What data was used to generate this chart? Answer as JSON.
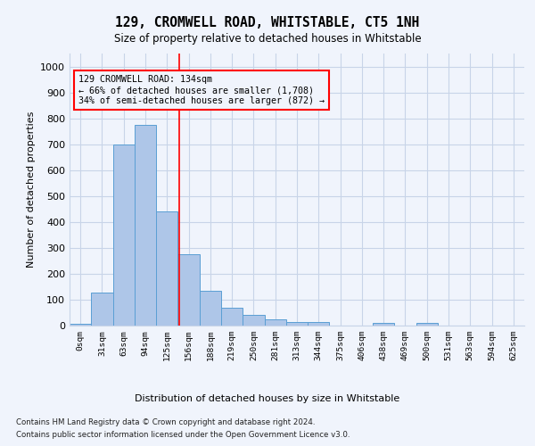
{
  "title": "129, CROMWELL ROAD, WHITSTABLE, CT5 1NH",
  "subtitle": "Size of property relative to detached houses in Whitstable",
  "xlabel": "Distribution of detached houses by size in Whitstable",
  "ylabel": "Number of detached properties",
  "footnote1": "Contains HM Land Registry data © Crown copyright and database right 2024.",
  "footnote2": "Contains public sector information licensed under the Open Government Licence v3.0.",
  "bar_labels": [
    "0sqm",
    "31sqm",
    "63sqm",
    "94sqm",
    "125sqm",
    "156sqm",
    "188sqm",
    "219sqm",
    "250sqm",
    "281sqm",
    "313sqm",
    "344sqm",
    "375sqm",
    "406sqm",
    "438sqm",
    "469sqm",
    "500sqm",
    "531sqm",
    "563sqm",
    "594sqm",
    "625sqm"
  ],
  "bar_values": [
    7,
    127,
    700,
    775,
    440,
    275,
    133,
    70,
    40,
    25,
    13,
    13,
    0,
    0,
    10,
    0,
    10,
    0,
    0,
    0,
    0
  ],
  "bar_color": "#aec6e8",
  "bar_edge_color": "#5a9fd4",
  "grid_color": "#c8d4e8",
  "background_color": "#f0f4fc",
  "vline_x": 4.55,
  "vline_color": "red",
  "annotation_text": "129 CROMWELL ROAD: 134sqm\n← 66% of detached houses are smaller (1,708)\n34% of semi-detached houses are larger (872) →",
  "annotation_box_color": "red",
  "ylim": [
    0,
    1050
  ],
  "yticks": [
    0,
    100,
    200,
    300,
    400,
    500,
    600,
    700,
    800,
    900,
    1000
  ]
}
